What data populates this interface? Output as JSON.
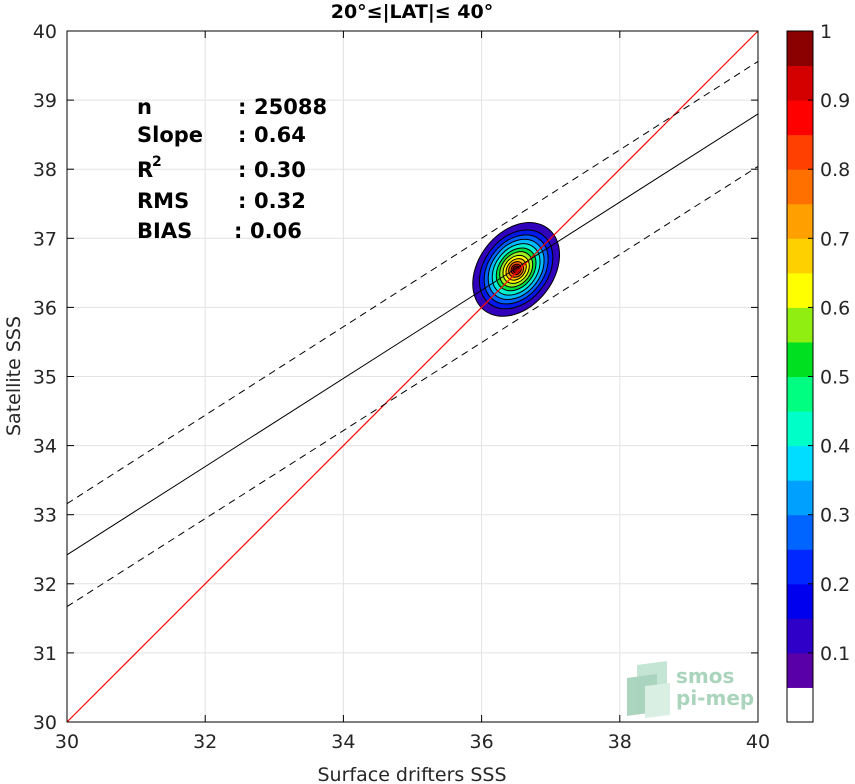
{
  "chart_data": {
    "type": "scatter",
    "title": "20°≤|LAT|≤ 40°",
    "xlabel": "Surface drifters SSS",
    "ylabel": "Satellite SSS",
    "xlim": [
      30,
      40
    ],
    "ylim": [
      30,
      40
    ],
    "xticks": [
      "30",
      "32",
      "34",
      "36",
      "38",
      "40"
    ],
    "yticks": [
      "30",
      "31",
      "32",
      "33",
      "34",
      "35",
      "36",
      "37",
      "38",
      "39",
      "40"
    ],
    "grid": true,
    "stats": [
      {
        "label": "n",
        "sep": ":",
        "value": "25088"
      },
      {
        "label": "Slope",
        "sep": ":",
        "value": "0.64"
      },
      {
        "label": "R",
        "sup": "2",
        "sep": ":",
        "value": "0.30"
      },
      {
        "label": "RMS",
        "sep": ":",
        "value": "0.32"
      },
      {
        "label": "BIAS",
        "sep": ":",
        "value": "0.06"
      }
    ],
    "identity_line": {
      "from": [
        30,
        30
      ],
      "to": [
        40,
        40
      ],
      "color": "#ff0000"
    },
    "fit_line": {
      "from": [
        30,
        32.42
      ],
      "to": [
        40,
        38.8
      ],
      "color": "#000000"
    },
    "confidence_lines": [
      {
        "from": [
          30,
          33.16
        ],
        "to": [
          40,
          39.56
        ]
      },
      {
        "from": [
          30,
          31.67
        ],
        "to": [
          40,
          38.04
        ]
      }
    ],
    "density_center": [
      36.5,
      36.55
    ],
    "density_levels": [
      {
        "level": 0.05,
        "rx": 0.75,
        "ry": 0.54,
        "color": "#3000bb"
      },
      {
        "level": 0.15,
        "rx": 0.63,
        "ry": 0.46,
        "color": "#0018e8"
      },
      {
        "level": 0.25,
        "rx": 0.55,
        "ry": 0.4,
        "color": "#0060ff"
      },
      {
        "level": 0.35,
        "rx": 0.48,
        "ry": 0.35,
        "color": "#00b8ff"
      },
      {
        "level": 0.45,
        "rx": 0.41,
        "ry": 0.3,
        "color": "#00f0d0"
      },
      {
        "level": 0.55,
        "rx": 0.34,
        "ry": 0.25,
        "color": "#00e040"
      },
      {
        "level": 0.6,
        "rx": 0.28,
        "ry": 0.21,
        "color": "#a0f020"
      },
      {
        "level": 0.65,
        "rx": 0.22,
        "ry": 0.17,
        "color": "#ffff00"
      },
      {
        "level": 0.7,
        "rx": 0.17,
        "ry": 0.13,
        "color": "#ffc000"
      },
      {
        "level": 0.8,
        "rx": 0.12,
        "ry": 0.1,
        "color": "#ff6000"
      },
      {
        "level": 0.9,
        "rx": 0.08,
        "ry": 0.07,
        "color": "#ee0000"
      },
      {
        "level": 1.0,
        "rx": 0.05,
        "ry": 0.045,
        "color": "#8b0000"
      }
    ],
    "colorbar": {
      "ticks": [
        "0.1",
        "0.2",
        "0.3",
        "0.4",
        "0.5",
        "0.6",
        "0.7",
        "0.8",
        "0.9",
        "1"
      ],
      "range": [
        0,
        1
      ],
      "colors": [
        "#ffffff",
        "#5a00a8",
        "#2e00c8",
        "#0000ee",
        "#0028ff",
        "#0064ff",
        "#00a0ff",
        "#00ddff",
        "#00ffc8",
        "#00ff80",
        "#00e020",
        "#90ee10",
        "#ffff00",
        "#ffd000",
        "#ffa000",
        "#ff7000",
        "#ff4000",
        "#ff0000",
        "#d40000",
        "#8b0000"
      ]
    }
  },
  "logo": {
    "line1": "smos",
    "line2": "pi-mep"
  }
}
